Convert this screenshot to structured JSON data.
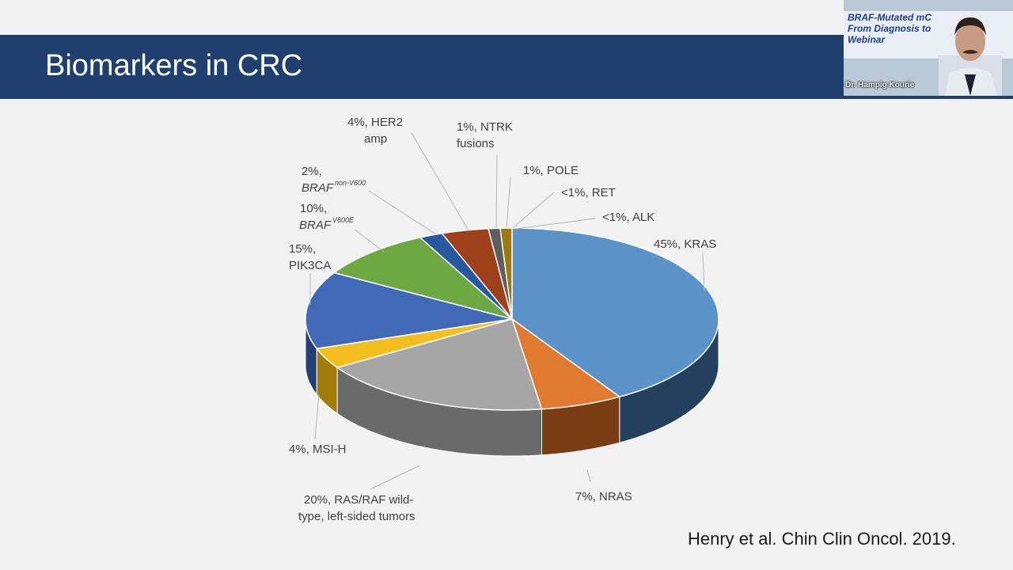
{
  "slide": {
    "title": "Biomarkers in CRC",
    "citation": "Henry et al. Chin Clin Oncol. 2019."
  },
  "video": {
    "banner_lines": [
      "BRAF-Mutated mC",
      "From Diagnosis to",
      "Webinar"
    ],
    "speaker_name": "Dr. Hampig Kourie"
  },
  "chart_data": {
    "type": "pie",
    "style": "3d",
    "slices": [
      {
        "label": "45%, KRAS",
        "value": 45,
        "color": "#5b93c9",
        "side": "#23405e"
      },
      {
        "label": "7%, NRAS",
        "value": 7,
        "color": "#e07a30",
        "side": "#7a3c12"
      },
      {
        "label": "20%, RAS/RAF wild-type, left-sided tumors",
        "value": 20,
        "color": "#a6a6a6",
        "side": "#6a6a6a"
      },
      {
        "label": "4%, MSI-H",
        "value": 4,
        "color": "#f2bf1f",
        "side": "#a07d08"
      },
      {
        "label": "15%, PIK3CA",
        "value": 15,
        "color": "#4169b5",
        "side": "#243f73"
      },
      {
        "label": "10%, BRAF V600E",
        "value": 10,
        "color": "#6ea842",
        "side": "#3d6422"
      },
      {
        "label": "2%, BRAF non-V600",
        "value": 2,
        "color": "#2659a0",
        "side": "#16365f"
      },
      {
        "label": "4%, HER2 amp",
        "value": 4,
        "color": "#a0401a",
        "side": "#5e230c"
      },
      {
        "label": "1%, NTRK fusions",
        "value": 1,
        "color": "#5e5e5e",
        "side": "#333333"
      },
      {
        "label": "1%, POLE",
        "value": 1,
        "color": "#9b7a12",
        "side": "#5c4808"
      }
    ],
    "label_text": {
      "kras": "45%, KRAS",
      "nras": "7%, NRAS",
      "wildtype_1": "20%, RAS/RAF wild-",
      "wildtype_2": "type, left-sided tumors",
      "msi": "4%, MSI-H",
      "pik3ca_1": "15%,",
      "pik3ca_2": "PIK3CA",
      "braf_v600e_pct": "10%,",
      "braf_v600e_gene": "BRAF",
      "braf_v600e_sup": "V600E",
      "braf_non_pct": "2%,",
      "braf_non_gene": "BRAF",
      "braf_non_sup": "non-V600",
      "her2_1": "4%, HER2",
      "her2_2": "amp",
      "ntrk_1": "1%, NTRK",
      "ntrk_2": "fusions",
      "pole": "1%, POLE",
      "ret": "<1%, RET",
      "alk": "<1%, ALK"
    }
  }
}
